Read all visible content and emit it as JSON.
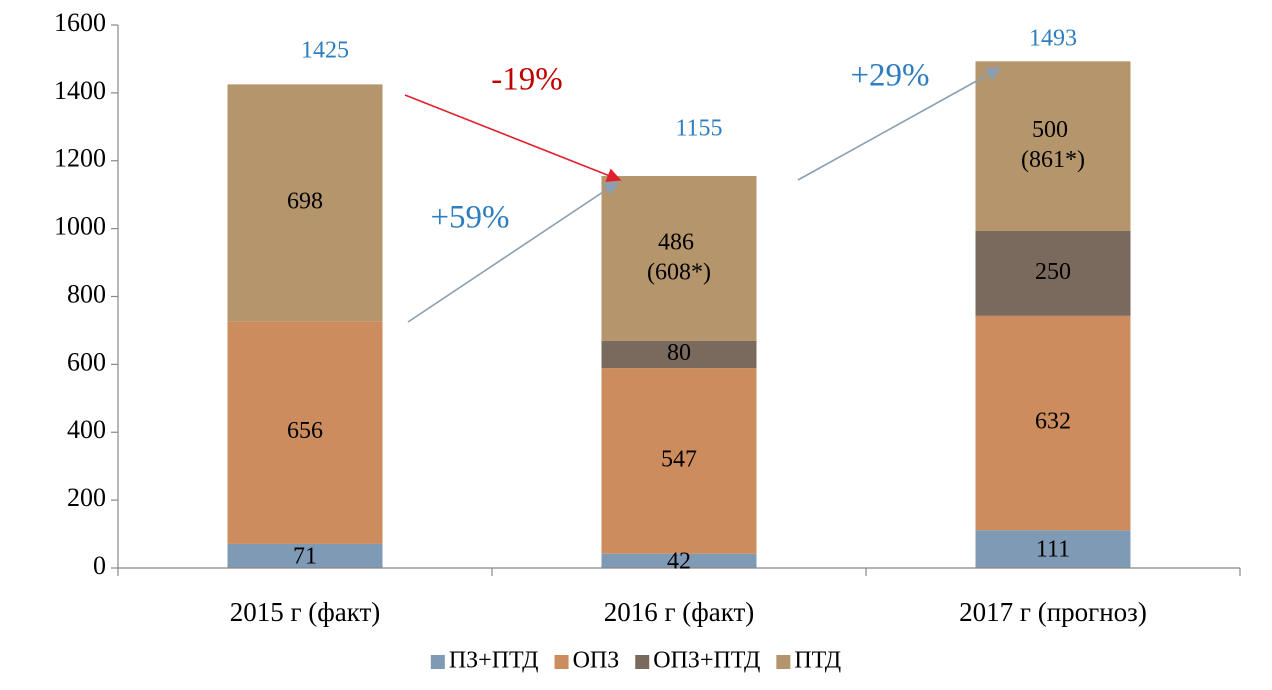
{
  "chart_data": {
    "type": "stacked_bar",
    "categories": [
      "2015 г (факт)",
      "2016 г (факт)",
      "2017 г (прогноз)"
    ],
    "series": [
      {
        "name": "ПЗ+ПТД",
        "color": "#7f9ab5",
        "values": [
          71,
          42,
          111
        ]
      },
      {
        "name": "ОПЗ",
        "color": "#cc8c5e",
        "values": [
          656,
          547,
          632
        ]
      },
      {
        "name": "ОПЗ+ПТД",
        "color": "#7a6a5e",
        "values": [
          null,
          80,
          250
        ]
      },
      {
        "name": "ПТД",
        "color": "#b5956b",
        "values": [
          698,
          486,
          500
        ],
        "value_labels": [
          "698",
          "486 (608*)",
          "500 (861*)"
        ]
      }
    ],
    "totals": [
      1425,
      1155,
      1493
    ],
    "totals_color": "#2e7dbf",
    "annotations": [
      {
        "text": "-19%",
        "color": "#c00000"
      },
      {
        "text": "+59%",
        "color": "#2e7dbf"
      },
      {
        "text": "+29%",
        "color": "#2e7dbf"
      }
    ],
    "ylim": [
      0,
      1600
    ],
    "yticks": [
      0,
      200,
      400,
      600,
      800,
      1000,
      1200,
      1400,
      1600
    ],
    "grid": false,
    "legend": "bottom"
  }
}
